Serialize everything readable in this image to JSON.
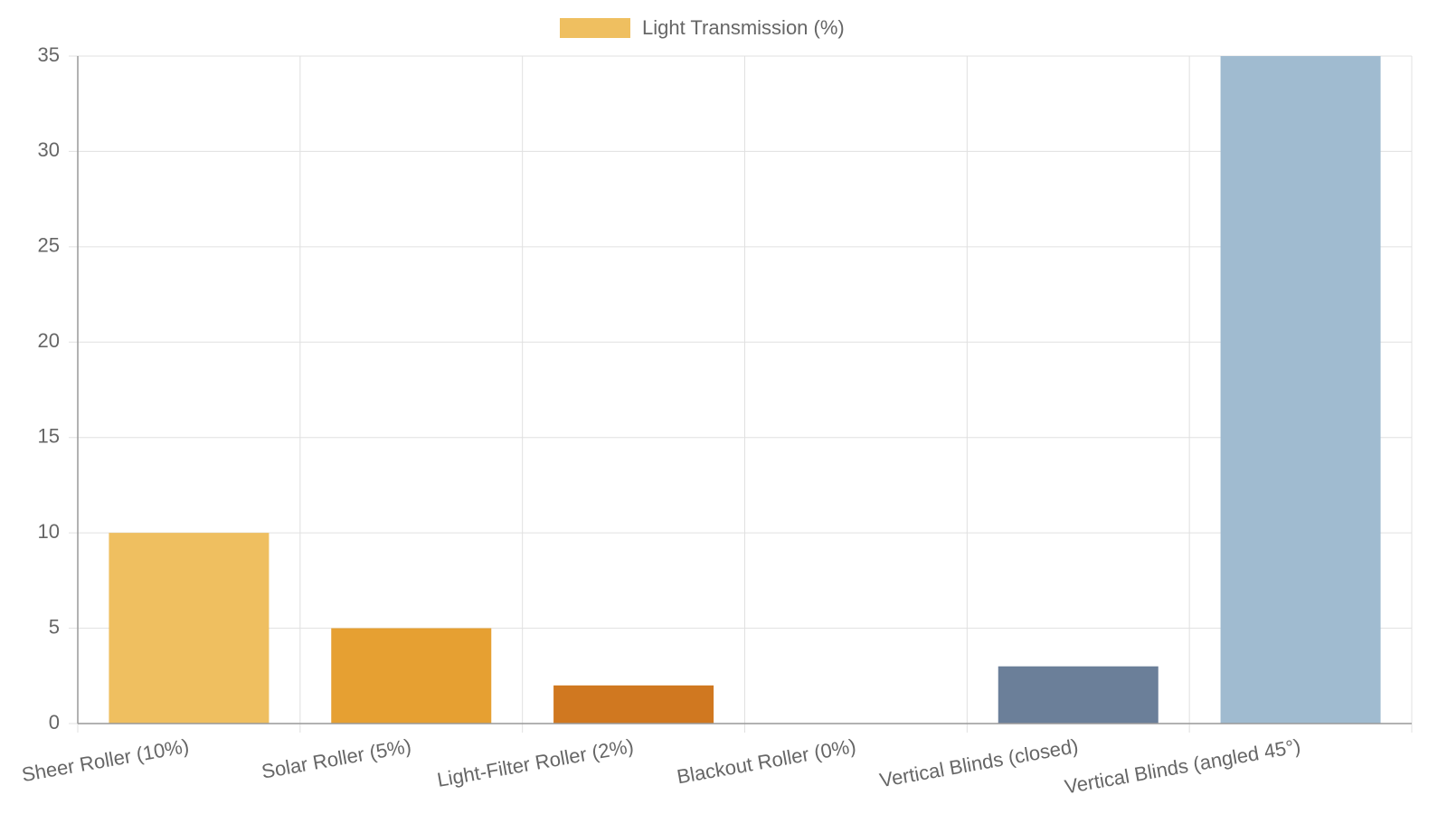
{
  "chart_data": {
    "type": "bar",
    "categories": [
      "Sheer Roller (10%)",
      "Solar Roller (5%)",
      "Light-Filter Roller (2%)",
      "Blackout Roller (0%)",
      "Vertical Blinds (closed)",
      "Vertical Blinds (angled 45°)"
    ],
    "series": [
      {
        "name": "Light Transmission (%)",
        "values": [
          10,
          5,
          2,
          0,
          3,
          35
        ],
        "colors": [
          "#efbf60",
          "#e6a032",
          "#d07820",
          "#4a4a4a",
          "#6b7f99",
          "#a0bbd0"
        ]
      }
    ],
    "ylim": [
      0,
      35
    ],
    "yticks": [
      0,
      5,
      10,
      15,
      20,
      25,
      30,
      35
    ],
    "grid": true,
    "legend": "top"
  }
}
